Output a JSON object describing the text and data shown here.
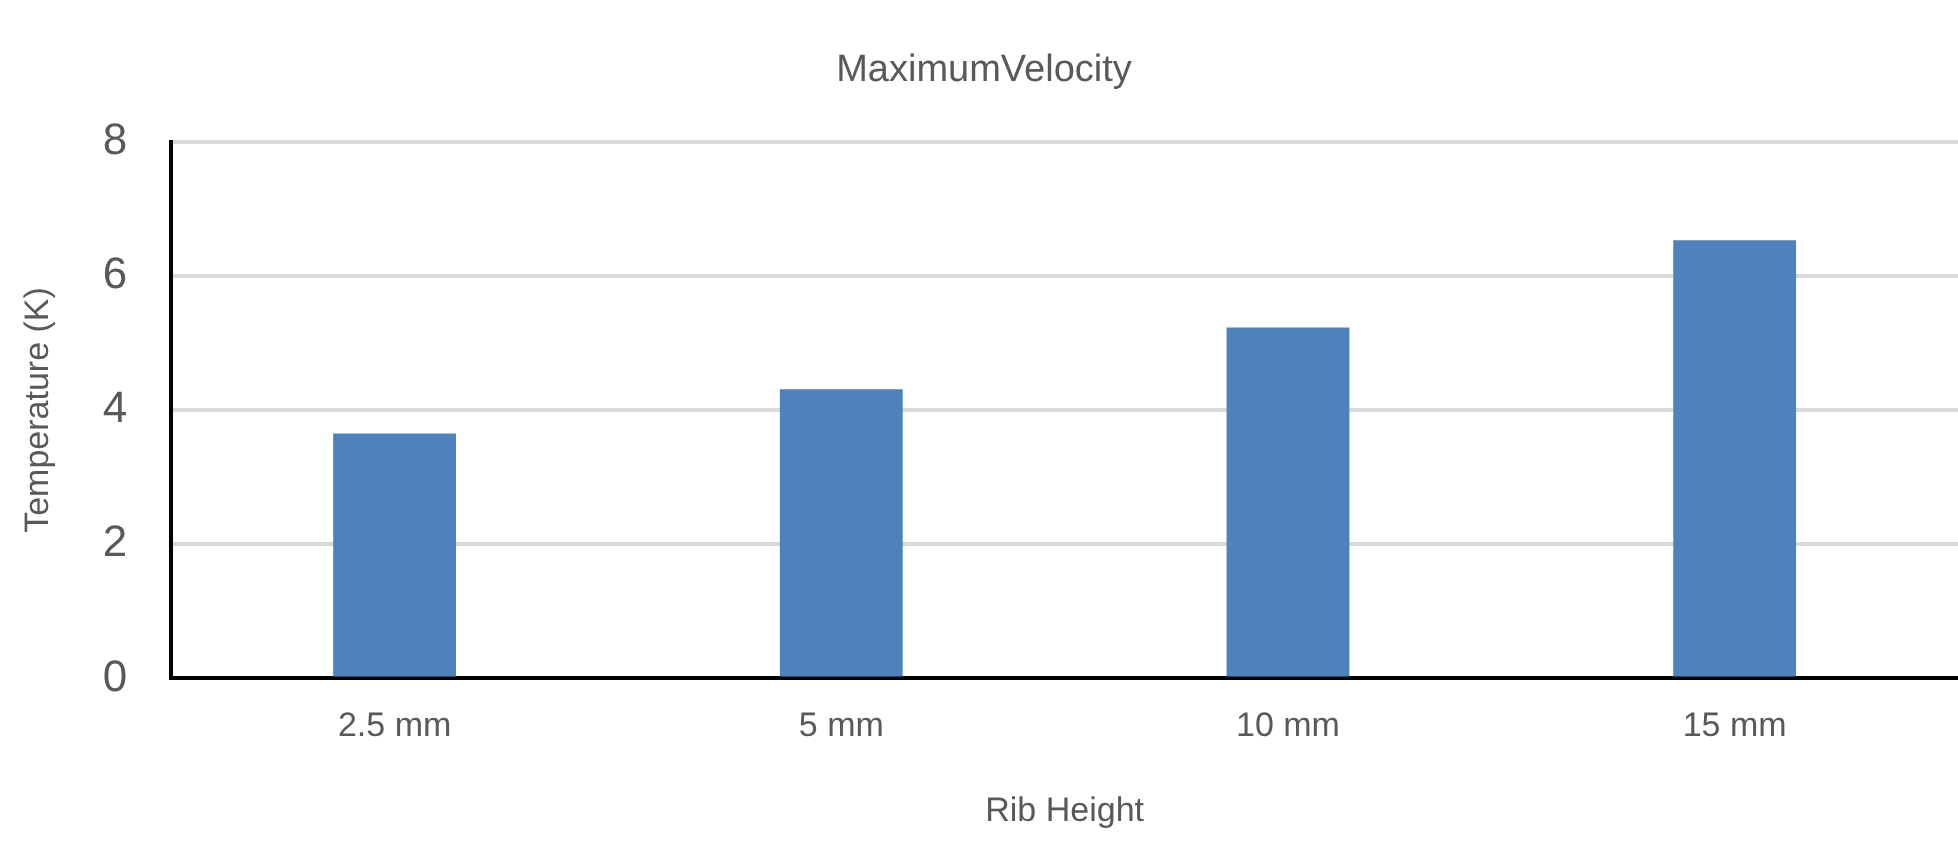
{
  "chart_data": {
    "type": "bar",
    "title": "MaximumVelocity",
    "xlabel": "Rib Height",
    "ylabel": "Temperature (K)",
    "categories": [
      "2.5 mm",
      "5 mm",
      "10 mm",
      "15 mm"
    ],
    "values": [
      3.65,
      4.31,
      5.23,
      6.53
    ],
    "color": "#4f81bd",
    "ylim": [
      0,
      8
    ],
    "yticks": [
      0,
      2,
      4,
      6,
      8
    ],
    "grid": "y",
    "legend": false
  }
}
